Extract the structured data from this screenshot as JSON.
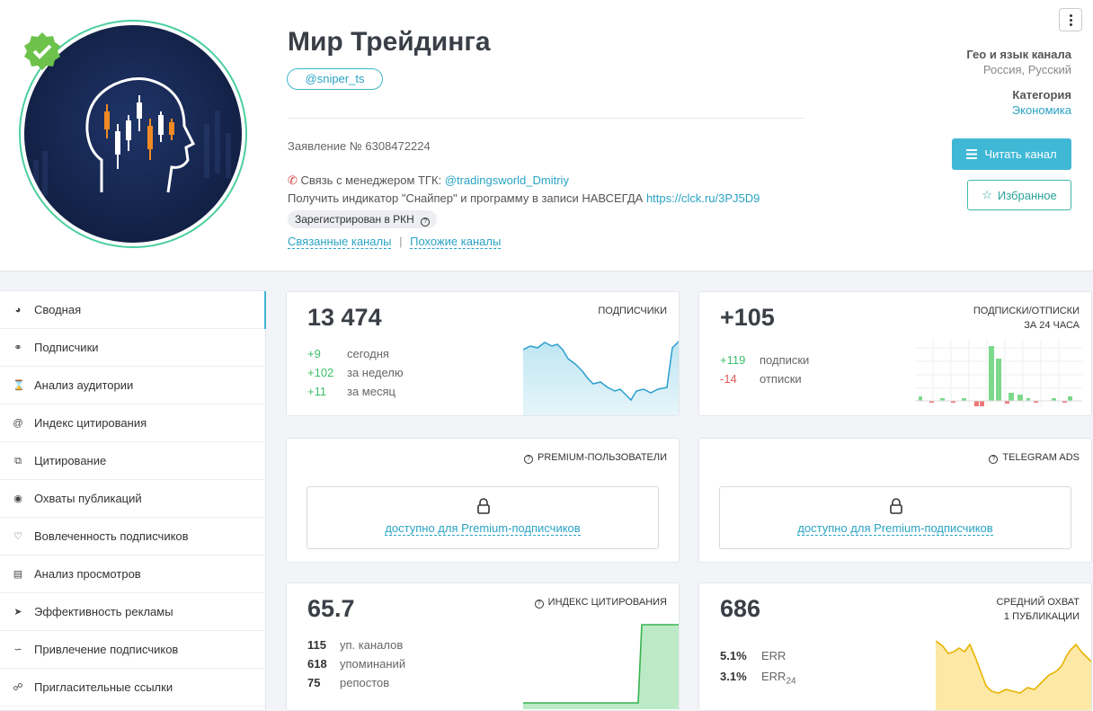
{
  "header": {
    "title": "Мир Трейдинга",
    "handle": "@sniper_ts",
    "statement": "Заявление № 6308472224",
    "contact_prefix": "Связь с менеджером ТГК: ",
    "contact_link": "@tradingsworld_Dmitriy",
    "promo_prefix": "Получить индикатор \"Снайпер\" и программу в записи НАВСЕГДА ",
    "promo_link": "https://clck.ru/3PJ5D9",
    "rkn_badge": "Зарегистрирован в РКН",
    "linked_channels": "Связанные каналы",
    "separator": "|",
    "similar_channels": "Похожие каналы",
    "geo_label": "Гео и язык канала",
    "geo_value": "Россия, Русский",
    "category_label": "Категория",
    "category_value": "Экономика",
    "read_button": "Читать канал",
    "favorite_button": "Избранное"
  },
  "sidebar": {
    "items": [
      {
        "label": "Сводная",
        "icon": "dashboard-icon"
      },
      {
        "label": "Подписчики",
        "icon": "users-icon"
      },
      {
        "label": "Анализ аудитории",
        "icon": "hourglass-icon"
      },
      {
        "label": "Индекс цитирования",
        "icon": "at-icon"
      },
      {
        "label": "Цитирование",
        "icon": "copy-icon"
      },
      {
        "label": "Охваты публикаций",
        "icon": "eye-icon"
      },
      {
        "label": "Вовлеченность подписчиков",
        "icon": "engagement-icon"
      },
      {
        "label": "Анализ просмотров",
        "icon": "bar-chart-icon"
      },
      {
        "label": "Эффективность рекламы",
        "icon": "rocket-icon"
      },
      {
        "label": "Привлечение подписчиков",
        "icon": "trend-icon"
      },
      {
        "label": "Пригласительные ссылки",
        "icon": "link-icon"
      }
    ]
  },
  "cards": {
    "subscribers": {
      "value": "13 474",
      "label": "ПОДПИСЧИКИ",
      "rows": [
        {
          "value": "+9",
          "label": "сегодня"
        },
        {
          "value": "+102",
          "label": "за неделю"
        },
        {
          "value": "+11",
          "label": "за месяц"
        }
      ]
    },
    "subs_unsubs": {
      "value": "+105",
      "label1": "ПОДПИСКИ/ОТПИСКИ",
      "label2": "ЗА 24 ЧАСА",
      "rows": [
        {
          "value": "+119",
          "label": "подписки"
        },
        {
          "value": "-14",
          "label": "отписки"
        }
      ]
    },
    "premium_users": {
      "label": "PREMIUM-ПОЛЬЗОВАТЕЛИ",
      "locked_text": "доступно для Premium-подписчиков"
    },
    "telegram_ads": {
      "label": "TELEGRAM ADS",
      "locked_text": "доступно для Premium-подписчиков"
    },
    "citation_index": {
      "value": "65.7",
      "label": "ИНДЕКС ЦИТИРОВАНИЯ",
      "rows": [
        {
          "value": "115",
          "label": "уп. каналов"
        },
        {
          "value": "618",
          "label": "упоминаний"
        },
        {
          "value": "75",
          "label": "репостов"
        }
      ]
    },
    "avg_reach": {
      "value": "686",
      "label1": "СРЕДНИЙ ОХВАТ",
      "label2": "1 ПУБЛИКАЦИИ",
      "err_value": "5.1%",
      "err_label": "ERR",
      "err24_value": "3.1%",
      "err24_label": "ERR",
      "err24_sub": "24"
    }
  },
  "colors": {
    "accent": "#3fb8d6",
    "green": "#3cbf6a",
    "red": "#e25a5a",
    "verified": "#6cc24a"
  }
}
